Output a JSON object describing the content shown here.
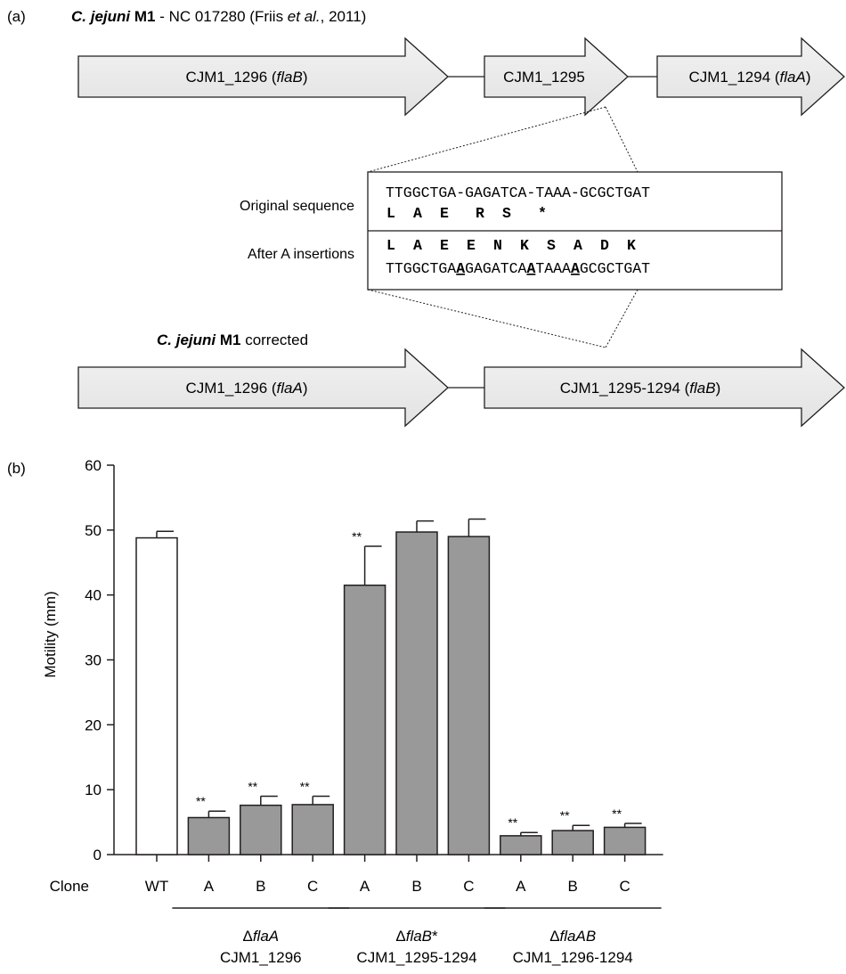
{
  "panel_a": {
    "label": "(a)",
    "title": {
      "organism": "C. jejuni",
      "strain": " M1",
      "accession": " - NC 017280 (Friis ",
      "etal": "et al.",
      "year": ", 2011)"
    },
    "original_genes": [
      {
        "name": "CJM1_1296 (",
        "italic": "flaB",
        "close": ")"
      },
      {
        "name": "CJM1_1295",
        "italic": "",
        "close": ""
      },
      {
        "name": "CJM1_1294 (",
        "italic": "flaA",
        "close": ")"
      }
    ],
    "box": {
      "original_label": "Original sequence",
      "original_seq": "TTGGCTGA-GAGATCA-TAAA-GCGCTGAT",
      "original_aa": [
        "L",
        "A",
        "E",
        "R",
        "S",
        "*"
      ],
      "insert_label": "After A insertions",
      "insert_aa": [
        "L",
        "A",
        "E",
        "E",
        "N",
        "K",
        "S",
        "A",
        "D",
        "K"
      ],
      "insert_seq_parts": [
        "TTGGCTGA",
        "A",
        "GAGATCA",
        "A",
        "TAAA",
        "A",
        "GCGCTGAT"
      ]
    },
    "corrected_title": {
      "organism": "C. jejuni",
      "rest": " M1",
      "suffix": " corrected"
    },
    "corrected_genes": [
      {
        "name": "CJM1_1296 (",
        "italic": "flaA",
        "close": ")"
      },
      {
        "name": "CJM1_1295-1294 (",
        "italic": "flaB",
        "close": ")"
      }
    ]
  },
  "chart_data": {
    "type": "bar",
    "panel_label": "(b)",
    "ylabel": "Motility (mm)",
    "ylim": [
      0,
      60
    ],
    "yticks": [
      0,
      10,
      20,
      30,
      40,
      50,
      60
    ],
    "x_prefix": "Clone",
    "categories": [
      "WT",
      "A",
      "B",
      "C",
      "A",
      "B",
      "C",
      "A",
      "B",
      "C"
    ],
    "values": [
      48.8,
      5.7,
      7.6,
      7.7,
      41.5,
      49.7,
      49.0,
      2.9,
      3.7,
      4.2
    ],
    "errors": [
      1.0,
      1.0,
      1.4,
      1.3,
      6.0,
      1.7,
      2.7,
      0.5,
      0.8,
      0.6
    ],
    "significance": [
      "",
      "**",
      "**",
      "**",
      "**",
      "",
      "",
      "**",
      "**",
      "**"
    ],
    "fill": [
      "#ffffff",
      "#999999",
      "#999999",
      "#999999",
      "#999999",
      "#999999",
      "#999999",
      "#999999",
      "#999999",
      "#999999"
    ],
    "groups": [
      {
        "start": 1,
        "end": 3,
        "name_prefix": "Δ",
        "name_italic": "flaA",
        "name_suffix": "",
        "locus": "CJM1_1296"
      },
      {
        "start": 4,
        "end": 6,
        "name_prefix": "Δ",
        "name_italic": "flaB",
        "name_suffix": "*",
        "locus": "CJM1_1295-1294"
      },
      {
        "start": 7,
        "end": 9,
        "name_prefix": "Δ",
        "name_italic": "flaAB",
        "name_suffix": "",
        "locus": "CJM1_1296-1294"
      }
    ],
    "grid": false,
    "legend": "none"
  }
}
